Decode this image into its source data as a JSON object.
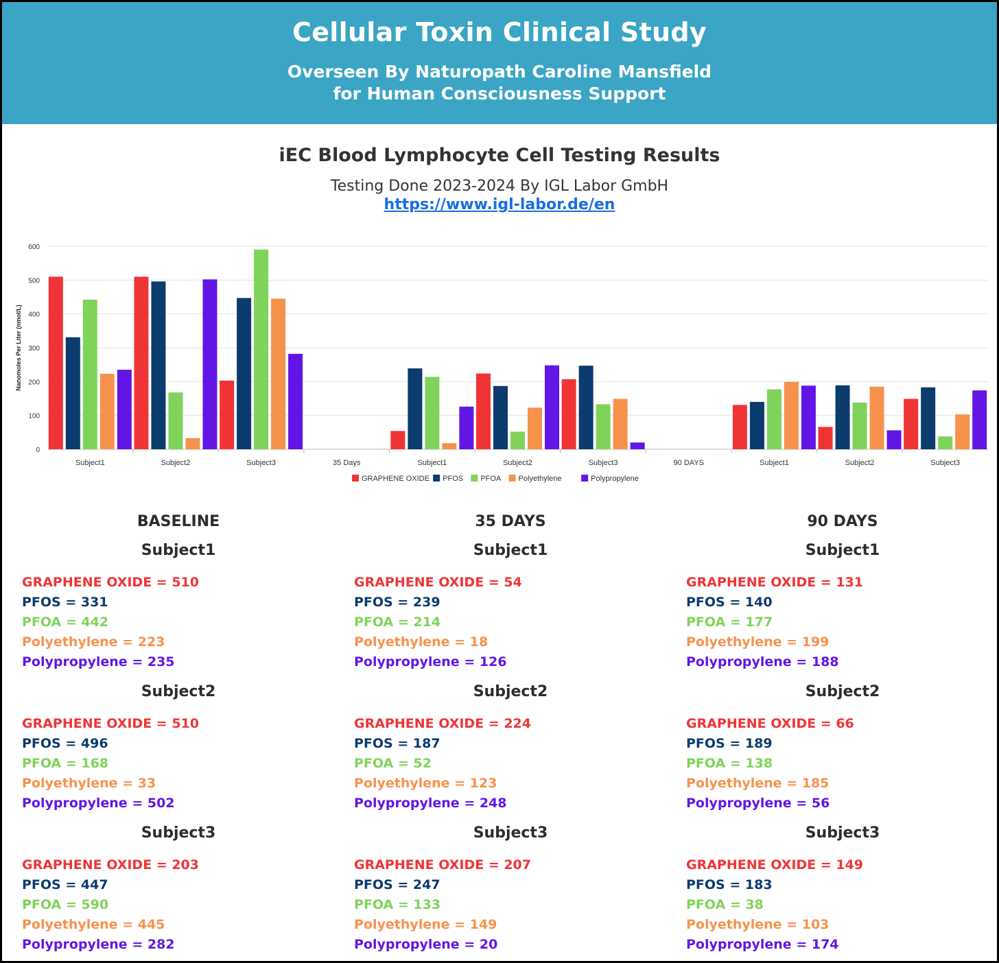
{
  "header": {
    "title": "Cellular Toxin Clinical Study",
    "subtitle_line1": "Overseen By Naturopath Caroline Mansfield",
    "subtitle_line2": "for Human Consciousness Support"
  },
  "report": {
    "heading": "iEC Blood Lymphocyte Cell Testing Results",
    "testing_line": "Testing Done 2023-2024 By IGL Labor GmbH",
    "link": "https://www.igl-labor.de/en"
  },
  "colors": {
    "GRAPHENE OXIDE": "#f03436",
    "PFOS": "#0c3b6e",
    "PFOA": "#7fd35a",
    "Polyethylene": "#f7924d",
    "Polypropylene": "#6116e6"
  },
  "chart_data": {
    "type": "bar",
    "title": "",
    "xlabel": "",
    "ylabel": "Nanomoles Per Liter (nmol/L)",
    "ylim": [
      0,
      600
    ],
    "yticks": [
      0,
      100,
      200,
      300,
      400,
      500,
      600
    ],
    "legend_position": "bottom",
    "categories": [
      "Subject1",
      "Subject2",
      "Subject3",
      "35 Days",
      "Subject1",
      "Subject2",
      "Subject3",
      "90 DAYS",
      "Subject1",
      "Subject2",
      "Subject3"
    ],
    "series": [
      {
        "name": "GRAPHENE OXIDE",
        "values": [
          510,
          510,
          203,
          null,
          54,
          224,
          207,
          null,
          131,
          66,
          149
        ]
      },
      {
        "name": "PFOS",
        "values": [
          331,
          496,
          447,
          null,
          239,
          187,
          247,
          null,
          140,
          189,
          183
        ]
      },
      {
        "name": "PFOA",
        "values": [
          442,
          168,
          590,
          null,
          214,
          52,
          133,
          null,
          177,
          138,
          38
        ]
      },
      {
        "name": "Polyethylene",
        "values": [
          223,
          33,
          445,
          null,
          18,
          123,
          149,
          null,
          199,
          185,
          103
        ]
      },
      {
        "name": "Polypropylene",
        "values": [
          235,
          502,
          282,
          null,
          126,
          248,
          20,
          null,
          188,
          56,
          174
        ]
      }
    ]
  },
  "periods": [
    {
      "title": "BASELINE",
      "subjects": [
        {
          "name": "Subject1",
          "values": [
            "GRAPHENE OXIDE = 510",
            "PFOS = 331",
            "PFOA = 442",
            "Polyethylene = 223",
            "Polypropylene = 235"
          ]
        },
        {
          "name": "Subject2",
          "values": [
            "GRAPHENE OXIDE = 510",
            "PFOS = 496",
            "PFOA = 168",
            "Polyethylene = 33",
            "Polypropylene = 502"
          ]
        },
        {
          "name": "Subject3",
          "values": [
            "GRAPHENE OXIDE = 203",
            "PFOS = 447",
            "PFOA = 590",
            "Polyethylene = 445",
            "Polypropylene = 282"
          ]
        }
      ]
    },
    {
      "title": "35 DAYS",
      "subjects": [
        {
          "name": "Subject1",
          "values": [
            "GRAPHENE OXIDE = 54",
            "PFOS = 239",
            "PFOA = 214",
            "Polyethylene = 18",
            "Polypropylene = 126"
          ]
        },
        {
          "name": "Subject2",
          "values": [
            "GRAPHENE OXIDE = 224",
            "PFOS = 187",
            "PFOA = 52",
            "Polyethylene = 123",
            "Polypropylene = 248"
          ]
        },
        {
          "name": "Subject3",
          "values": [
            "GRAPHENE OXIDE = 207",
            "PFOS = 247",
            "PFOA = 133",
            "Polyethylene = 149",
            "Polypropylene = 20"
          ]
        }
      ]
    },
    {
      "title": "90 DAYS",
      "subjects": [
        {
          "name": "Subject1",
          "values": [
            "GRAPHENE OXIDE = 131",
            "PFOS = 140",
            "PFOA = 177",
            "Polyethylene = 199",
            "Polypropylene = 188"
          ]
        },
        {
          "name": "Subject2",
          "values": [
            "GRAPHENE OXIDE = 66",
            "PFOS = 189",
            "PFOA = 138",
            "Polyethylene = 185",
            "Polypropylene = 56"
          ]
        },
        {
          "name": "Subject3",
          "values": [
            "GRAPHENE OXIDE = 149",
            "PFOS = 183",
            "PFOA = 38",
            "Polyethylene = 103",
            "Polypropylene = 174"
          ]
        }
      ]
    }
  ]
}
